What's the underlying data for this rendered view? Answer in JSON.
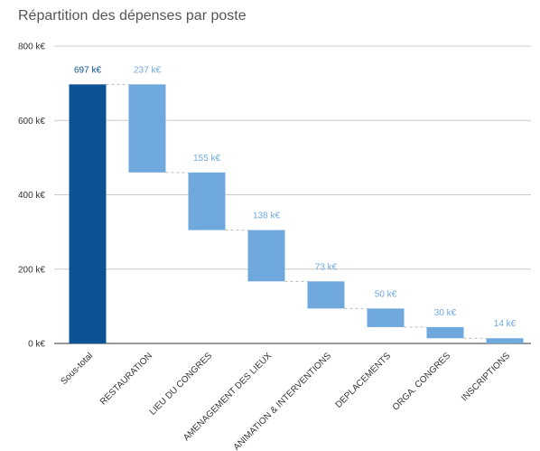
{
  "chart_data": {
    "type": "bar",
    "subtype": "waterfall",
    "title": "Répartition des dépenses par poste",
    "xlabel": "",
    "ylabel": "",
    "ylim": [
      0,
      800
    ],
    "yticks": [
      0,
      200,
      400,
      600,
      800
    ],
    "ytick_labels": [
      "0 k€",
      "200 k€",
      "400 k€",
      "600 k€",
      "800 k€"
    ],
    "grid": true,
    "legend": "none",
    "colors": {
      "total": "#0b5394",
      "step": "#6fa8dc",
      "grid": "#cccccc",
      "connector": "#bbbbbb"
    },
    "categories": [
      "Sous-total",
      "RESTAURATION",
      "LIEU DU CONGRES",
      "AMENAGEMENT DES LIEUX",
      "ANIMATION & INTERVENTIONS",
      "DEPLACEMENTS",
      "ORGA. CONGRES",
      "INSCRIPTIONS"
    ],
    "values": [
      697,
      237,
      155,
      138,
      73,
      50,
      30,
      14
    ],
    "data_labels": [
      "697 k€",
      "237 k€",
      "155 k€",
      "138 k€",
      "73 k€",
      "50 k€",
      "30 k€",
      "14 k€"
    ],
    "is_total": [
      true,
      false,
      false,
      false,
      false,
      false,
      false,
      false
    ]
  }
}
